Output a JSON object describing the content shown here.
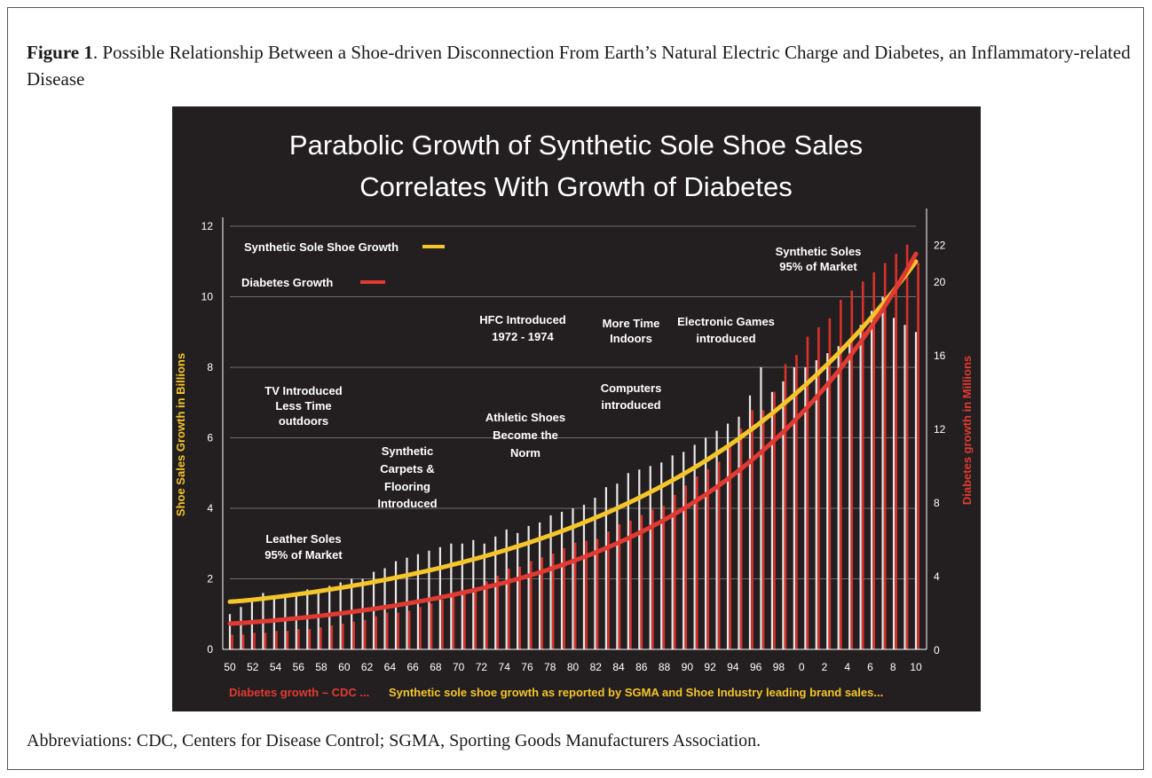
{
  "figure": {
    "label": "Figure 1",
    "caption": ". Possible Relationship Between a Shoe-driven Disconnection From Earth’s Natural Electric Charge and Diabetes, an Inflammatory-related Disease",
    "abbreviations": "Abbreviations: CDC, Centers for Disease Control; SGMA, Sporting Goods Manufacturers Association."
  },
  "colors": {
    "background": "#231f20",
    "shoe": "#f5c52a",
    "diabetes": "#e03a32",
    "bars_white": "#e8e8e8",
    "bars_red": "#d8322b",
    "text": "#ffffff"
  },
  "chart_data": {
    "type": "bar",
    "title_line1": "Parabolic Growth of Synthetic Sole Shoe Sales",
    "title_line2": "Correlates With Growth of Diabetes",
    "ylabel_left": "Shoe Sales Growth in Billions",
    "ylabel_right": "Diabetes growth in Millions",
    "ylim_left": [
      0,
      12
    ],
    "ylim_right": [
      0,
      23
    ],
    "yticks_left": [
      "0",
      "2",
      "4",
      "6",
      "8",
      "10",
      "12"
    ],
    "yticks_right": [
      "0",
      "4",
      "8",
      "12",
      "16",
      "20",
      "22"
    ],
    "xtick_labels": [
      "50",
      "52",
      "54",
      "56",
      "58",
      "60",
      "62",
      "64",
      "66",
      "68",
      "70",
      "72",
      "74",
      "76",
      "78",
      "80",
      "82",
      "84",
      "86",
      "88",
      "90",
      "92",
      "94",
      "96",
      "98",
      "0",
      "2",
      "4",
      "6",
      "8",
      "10"
    ],
    "grid": true,
    "legend_position": "top-left",
    "series": [
      {
        "name": "Synthetic Sole Shoe Growth",
        "axis": "left",
        "kind": "bars+curve",
        "values": [
          1.0,
          1.2,
          1.4,
          1.6,
          1.5,
          1.5,
          1.6,
          1.7,
          1.7,
          1.8,
          1.9,
          2.0,
          2.0,
          2.2,
          2.3,
          2.5,
          2.6,
          2.7,
          2.8,
          2.9,
          3.0,
          3.0,
          3.1,
          3.0,
          3.2,
          3.4,
          3.3,
          3.5,
          3.6,
          3.8,
          3.9,
          4.0,
          4.1,
          4.3,
          4.6,
          4.7,
          5.0,
          5.1,
          5.2,
          5.3,
          5.5,
          5.6,
          5.8,
          6.0,
          6.2,
          6.4,
          6.6,
          7.2,
          8.0,
          7.3,
          7.6,
          8.0,
          8.0,
          8.2,
          8.4,
          8.6,
          8.8,
          9.2,
          9.6,
          10.0,
          9.4,
          9.2,
          9.0
        ]
      },
      {
        "name": "Diabetes Growth",
        "axis": "right",
        "kind": "bars+curve",
        "values": [
          0.8,
          0.8,
          0.9,
          0.9,
          1.0,
          1.0,
          1.1,
          1.1,
          1.2,
          1.3,
          1.4,
          1.5,
          1.6,
          1.8,
          2.0,
          2.0,
          2.1,
          2.3,
          2.5,
          2.7,
          2.9,
          3.1,
          3.3,
          3.7,
          4.0,
          4.4,
          4.5,
          4.8,
          5.0,
          5.2,
          5.5,
          5.8,
          5.9,
          6.0,
          6.4,
          6.8,
          7.0,
          7.3,
          7.6,
          7.8,
          8.4,
          8.9,
          9.4,
          9.8,
          10.2,
          11.0,
          12.0,
          13.0,
          13.0,
          14.0,
          15.5,
          16.0,
          17.0,
          17.5,
          18.0,
          19.0,
          19.5,
          20.0,
          20.5,
          21.0,
          21.5,
          22.0,
          21.0
        ]
      }
    ],
    "annotations": [
      "TV Introduced Less Time outdoors",
      "Synthetic Carpets & Flooring Introduced",
      "Leather Soles 95% of Market",
      "HFC Introduced 1972 - 1974",
      "Athletic Shoes Become the Norm",
      "More Time Indoors",
      "Electronic Games introduced",
      "Computers introduced",
      "Synthetic Soles 95% of Market"
    ],
    "source_note_red": "Diabetes growth – CDC ...",
    "source_note_yellow": "Synthetic sole shoe growth as reported by SGMA and Shoe Industry leading brand sales..."
  }
}
